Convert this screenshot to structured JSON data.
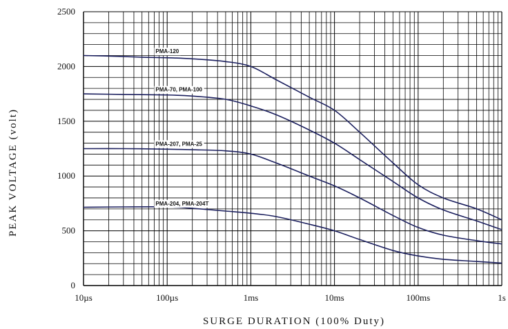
{
  "chart_data": {
    "type": "line",
    "title": "",
    "xlabel": "SURGE DURATION (100% Duty)",
    "ylabel": "PEAK VOLTAGE (volt)",
    "x_scale": "log",
    "x_unit": "s",
    "xlim": [
      1e-05,
      1
    ],
    "ylim": [
      0,
      2500
    ],
    "grid": true,
    "x_ticks": [
      {
        "value": 1e-05,
        "label": "10µs"
      },
      {
        "value": 0.0001,
        "label": "100µs"
      },
      {
        "value": 0.001,
        "label": "1ms"
      },
      {
        "value": 0.01,
        "label": "10ms"
      },
      {
        "value": 0.1,
        "label": "100ms"
      },
      {
        "value": 1,
        "label": "1s"
      }
    ],
    "y_ticks": [
      {
        "value": 0,
        "label": "0"
      },
      {
        "value": 500,
        "label": "500"
      },
      {
        "value": 1000,
        "label": "1000"
      },
      {
        "value": 1500,
        "label": "1500"
      },
      {
        "value": 2000,
        "label": "2000"
      },
      {
        "value": 2500,
        "label": "2500"
      }
    ],
    "series": [
      {
        "name": "PMA-120",
        "label_at": {
          "x": 7e-05,
          "y": 2140
        },
        "points": [
          [
            1e-05,
            2100
          ],
          [
            2e-05,
            2095
          ],
          [
            5e-05,
            2085
          ],
          [
            0.0001,
            2080
          ],
          [
            0.0002,
            2070
          ],
          [
            0.0005,
            2045
          ],
          [
            0.001,
            2000
          ],
          [
            0.002,
            1880
          ],
          [
            0.005,
            1720
          ],
          [
            0.01,
            1600
          ],
          [
            0.02,
            1400
          ],
          [
            0.05,
            1120
          ],
          [
            0.1,
            920
          ],
          [
            0.2,
            800
          ],
          [
            0.5,
            700
          ],
          [
            1,
            600
          ]
        ]
      },
      {
        "name": "PMA-70, PMA-100",
        "label_at": {
          "x": 7e-05,
          "y": 1790
        },
        "points": [
          [
            1e-05,
            1750
          ],
          [
            3e-05,
            1745
          ],
          [
            0.0001,
            1740
          ],
          [
            0.0002,
            1730
          ],
          [
            0.0005,
            1700
          ],
          [
            0.001,
            1640
          ],
          [
            0.002,
            1560
          ],
          [
            0.005,
            1420
          ],
          [
            0.01,
            1300
          ],
          [
            0.02,
            1150
          ],
          [
            0.05,
            950
          ],
          [
            0.1,
            800
          ],
          [
            0.2,
            690
          ],
          [
            0.5,
            590
          ],
          [
            1,
            510
          ]
        ]
      },
      {
        "name": "PMA-207, PMA-25",
        "label_at": {
          "x": 7e-05,
          "y": 1295
        },
        "points": [
          [
            1e-05,
            1250
          ],
          [
            3e-05,
            1250
          ],
          [
            0.0001,
            1245
          ],
          [
            0.0002,
            1240
          ],
          [
            0.0005,
            1230
          ],
          [
            0.001,
            1200
          ],
          [
            0.002,
            1120
          ],
          [
            0.005,
            1000
          ],
          [
            0.01,
            910
          ],
          [
            0.02,
            800
          ],
          [
            0.05,
            640
          ],
          [
            0.1,
            530
          ],
          [
            0.2,
            460
          ],
          [
            0.5,
            410
          ],
          [
            1,
            380
          ]
        ]
      },
      {
        "name": "PMA-204, PMA-204T",
        "label_at": {
          "x": 7e-05,
          "y": 750
        },
        "points": [
          [
            1e-05,
            715
          ],
          [
            3e-05,
            718
          ],
          [
            0.0001,
            718
          ],
          [
            0.0002,
            705
          ],
          [
            0.0005,
            680
          ],
          [
            0.001,
            660
          ],
          [
            0.002,
            630
          ],
          [
            0.005,
            560
          ],
          [
            0.01,
            500
          ],
          [
            0.02,
            420
          ],
          [
            0.05,
            320
          ],
          [
            0.1,
            270
          ],
          [
            0.2,
            240
          ],
          [
            0.5,
            220
          ],
          [
            1,
            205
          ]
        ]
      }
    ]
  },
  "colors": {
    "curve": "#1b1f5e",
    "grid": "#000000",
    "text": "#111111"
  }
}
